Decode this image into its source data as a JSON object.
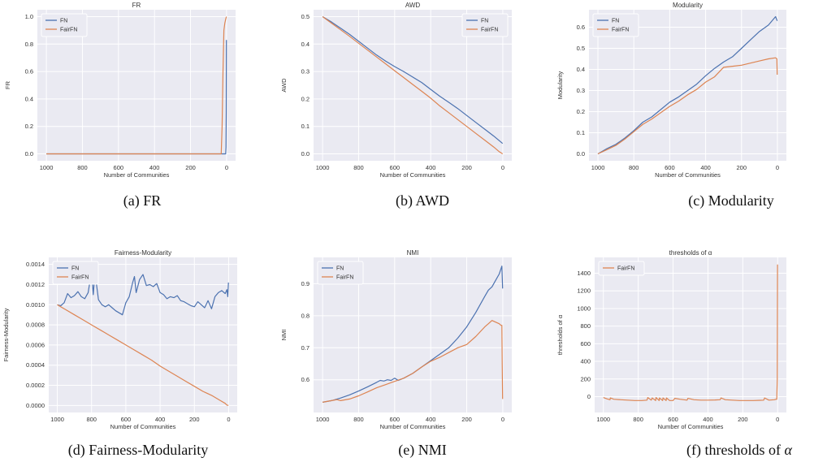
{
  "colors": {
    "fn": "#4c72b0",
    "fairfn": "#dd8452",
    "plot_bg": "#eaeaf2",
    "grid": "#ffffff",
    "text": "#333333"
  },
  "captions": {
    "a": "(a) FR",
    "b": "(b) AWD",
    "c": "(c) Modularity",
    "d": "(d) Fairness-Modularity",
    "e": "(e) NMI",
    "f_prefix": "(f) thresholds of ",
    "f_symbol": "α"
  },
  "chart_data": [
    {
      "id": "fr",
      "type": "line",
      "title": "FR",
      "xlabel": "Number of Communities",
      "ylabel": "FR",
      "xlim": [
        1000,
        0
      ],
      "ylim": [
        0,
        1.0
      ],
      "xticks": [
        1000,
        800,
        600,
        400,
        200,
        0
      ],
      "xticklabels": [
        "1000",
        "800",
        "600",
        "400",
        "200",
        "0"
      ],
      "yticks": [
        0,
        0.2,
        0.4,
        0.6,
        0.8,
        1.0
      ],
      "yticklabels": [
        "0.0",
        "0.2",
        "0.4",
        "0.6",
        "0.8",
        "1.0"
      ],
      "legend": "top-left",
      "series": [
        {
          "name": "FN",
          "color_key": "fn",
          "x": [
            1000,
            5,
            3,
            2,
            1
          ],
          "y": [
            0,
            0,
            0.05,
            0.3,
            0.83
          ]
        },
        {
          "name": "FairFN",
          "color_key": "fairfn",
          "x": [
            1000,
            30,
            25,
            20,
            15,
            10,
            5,
            1
          ],
          "y": [
            0,
            0,
            0.2,
            0.6,
            0.9,
            0.95,
            0.98,
            1.0
          ]
        }
      ]
    },
    {
      "id": "awd",
      "type": "line",
      "title": "AWD",
      "xlabel": "Number of Communities",
      "ylabel": "AWD",
      "xlim": [
        1000,
        0
      ],
      "ylim": [
        0,
        0.5
      ],
      "xticks": [
        1000,
        800,
        600,
        400,
        200,
        0
      ],
      "xticklabels": [
        "1000",
        "800",
        "600",
        "400",
        "200",
        "0"
      ],
      "yticks": [
        0,
        0.1,
        0.2,
        0.3,
        0.4,
        0.5
      ],
      "yticklabels": [
        "0.0",
        "0.1",
        "0.2",
        "0.3",
        "0.4",
        "0.5"
      ],
      "legend": "top-right",
      "series": [
        {
          "name": "FN",
          "color_key": "fn",
          "x": [
            1000,
            950,
            900,
            850,
            800,
            750,
            700,
            650,
            600,
            550,
            500,
            450,
            400,
            350,
            300,
            250,
            200,
            150,
            100,
            50,
            1
          ],
          "y": [
            0.5,
            0.48,
            0.458,
            0.435,
            0.41,
            0.385,
            0.36,
            0.338,
            0.318,
            0.3,
            0.28,
            0.26,
            0.235,
            0.21,
            0.188,
            0.165,
            0.14,
            0.115,
            0.09,
            0.065,
            0.038
          ]
        },
        {
          "name": "FairFN",
          "color_key": "fairfn",
          "x": [
            1000,
            950,
            900,
            850,
            800,
            750,
            700,
            650,
            600,
            550,
            500,
            450,
            400,
            350,
            300,
            250,
            200,
            150,
            100,
            50,
            20,
            1
          ],
          "y": [
            0.5,
            0.476,
            0.452,
            0.428,
            0.403,
            0.378,
            0.353,
            0.328,
            0.303,
            0.278,
            0.253,
            0.228,
            0.203,
            0.175,
            0.15,
            0.125,
            0.1,
            0.075,
            0.05,
            0.025,
            0.008,
            0.0
          ]
        }
      ]
    },
    {
      "id": "modularity",
      "type": "line",
      "title": "Modularity",
      "xlabel": "Number of Communities",
      "ylabel": "Modularity",
      "xlim": [
        1000,
        0
      ],
      "ylim": [
        0,
        0.65
      ],
      "xticks": [
        1000,
        800,
        600,
        400,
        200,
        0
      ],
      "xticklabels": [
        "1000",
        "800",
        "600",
        "400",
        "200",
        "0"
      ],
      "yticks": [
        0,
        0.1,
        0.2,
        0.3,
        0.4,
        0.5,
        0.6
      ],
      "yticklabels": [
        "0.0",
        "0.1",
        "0.2",
        "0.3",
        "0.4",
        "0.5",
        "0.6"
      ],
      "legend": "top-left",
      "series": [
        {
          "name": "FN",
          "color_key": "fn",
          "x": [
            1000,
            950,
            900,
            850,
            800,
            750,
            700,
            650,
            600,
            550,
            500,
            450,
            400,
            350,
            300,
            250,
            200,
            150,
            100,
            50,
            10,
            1
          ],
          "y": [
            0.0,
            0.025,
            0.045,
            0.075,
            0.11,
            0.15,
            0.175,
            0.21,
            0.245,
            0.27,
            0.3,
            0.33,
            0.37,
            0.405,
            0.435,
            0.46,
            0.5,
            0.54,
            0.58,
            0.61,
            0.65,
            0.63
          ]
        },
        {
          "name": "FairFN",
          "color_key": "fairfn",
          "x": [
            1000,
            950,
            900,
            850,
            800,
            750,
            700,
            650,
            600,
            550,
            500,
            450,
            400,
            350,
            300,
            250,
            200,
            150,
            100,
            50,
            10,
            3,
            1
          ],
          "y": [
            0.0,
            0.02,
            0.04,
            0.07,
            0.105,
            0.14,
            0.165,
            0.195,
            0.225,
            0.25,
            0.28,
            0.305,
            0.34,
            0.365,
            0.41,
            0.415,
            0.42,
            0.43,
            0.44,
            0.45,
            0.455,
            0.45,
            0.375
          ]
        }
      ]
    },
    {
      "id": "fairness_modularity",
      "type": "line",
      "title": "Fairness-Modularity",
      "xlabel": "Number of Communities",
      "ylabel": "Fairness-Modularity",
      "xlim": [
        1000,
        0
      ],
      "ylim": [
        0,
        0.0014
      ],
      "xticks": [
        1000,
        800,
        600,
        400,
        200,
        0
      ],
      "xticklabels": [
        "1000",
        "800",
        "600",
        "400",
        "200",
        "0"
      ],
      "yticks": [
        0,
        0.0002,
        0.0004,
        0.0006,
        0.0008,
        0.001,
        0.0012,
        0.0014
      ],
      "yticklabels": [
        "0.0000",
        "0.0002",
        "0.0004",
        "0.0006",
        "0.0008",
        "0.0010",
        "0.0012",
        "0.0014"
      ],
      "legend": "top-left",
      "series": [
        {
          "name": "FN",
          "color_key": "fn",
          "x": [
            1000,
            980,
            960,
            940,
            920,
            900,
            880,
            860,
            840,
            820,
            800,
            790,
            780,
            760,
            740,
            720,
            700,
            680,
            660,
            640,
            620,
            600,
            580,
            560,
            550,
            540,
            520,
            500,
            480,
            460,
            440,
            420,
            400,
            380,
            360,
            340,
            320,
            300,
            280,
            260,
            240,
            220,
            200,
            180,
            160,
            140,
            120,
            100,
            80,
            60,
            40,
            20,
            10,
            5,
            1
          ],
          "y": [
            0.001,
            0.00099,
            0.00102,
            0.00111,
            0.00107,
            0.00109,
            0.00113,
            0.00108,
            0.00106,
            0.00112,
            0.00133,
            0.0011,
            0.00132,
            0.00105,
            0.001,
            0.00098,
            0.001,
            0.00097,
            0.00094,
            0.00092,
            0.0009,
            0.00102,
            0.00108,
            0.00122,
            0.00128,
            0.00112,
            0.00125,
            0.0013,
            0.00119,
            0.0012,
            0.00118,
            0.00121,
            0.00112,
            0.0011,
            0.00106,
            0.00108,
            0.00107,
            0.00109,
            0.00104,
            0.00103,
            0.00101,
            0.00099,
            0.00098,
            0.00103,
            0.001,
            0.00097,
            0.00104,
            0.00096,
            0.00108,
            0.00112,
            0.00114,
            0.00111,
            0.00115,
            0.00108,
            0.00122
          ]
        },
        {
          "name": "FairFN",
          "color_key": "fairfn",
          "x": [
            1000,
            950,
            900,
            850,
            800,
            750,
            700,
            650,
            600,
            550,
            500,
            450,
            400,
            350,
            300,
            250,
            200,
            150,
            100,
            50,
            20,
            10,
            1
          ],
          "y": [
            0.001,
            0.00095,
            0.0009,
            0.00085,
            0.0008,
            0.00075,
            0.0007,
            0.00065,
            0.0006,
            0.00055,
            0.0005,
            0.00045,
            0.00039,
            0.00034,
            0.00029,
            0.00024,
            0.00019,
            0.00014,
            0.0001,
            5e-05,
            2e-05,
            3e-06,
            0.0
          ]
        }
      ]
    },
    {
      "id": "nmi",
      "type": "line",
      "title": "NMI",
      "xlabel": "Number of Communities",
      "ylabel": "NMI",
      "xlim": [
        1000,
        0
      ],
      "ylim": [
        0.52,
        0.96
      ],
      "xticks": [
        1000,
        800,
        600,
        400,
        200,
        0
      ],
      "xticklabels": [
        "1000",
        "800",
        "600",
        "400",
        "200",
        "0"
      ],
      "yticks": [
        0.6,
        0.7,
        0.8,
        0.9
      ],
      "yticklabels": [
        "0.6",
        "0.7",
        "0.8",
        "0.9"
      ],
      "legend": "top-left",
      "series": [
        {
          "name": "FN",
          "color_key": "fn",
          "x": [
            1000,
            950,
            900,
            850,
            800,
            750,
            700,
            680,
            660,
            640,
            620,
            600,
            580,
            550,
            500,
            450,
            400,
            350,
            300,
            250,
            200,
            150,
            100,
            80,
            60,
            40,
            20,
            5,
            1
          ],
          "y": [
            0.53,
            0.535,
            0.543,
            0.553,
            0.565,
            0.578,
            0.592,
            0.598,
            0.596,
            0.6,
            0.598,
            0.605,
            0.598,
            0.605,
            0.62,
            0.64,
            0.66,
            0.68,
            0.7,
            0.73,
            0.765,
            0.81,
            0.86,
            0.88,
            0.89,
            0.91,
            0.93,
            0.955,
            0.885
          ]
        },
        {
          "name": "FairFN",
          "color_key": "fairfn",
          "x": [
            1000,
            950,
            920,
            900,
            850,
            800,
            750,
            700,
            650,
            600,
            550,
            500,
            450,
            400,
            350,
            300,
            250,
            200,
            150,
            100,
            80,
            60,
            40,
            20,
            10,
            5,
            3,
            1
          ],
          "y": [
            0.53,
            0.535,
            0.538,
            0.535,
            0.54,
            0.55,
            0.562,
            0.575,
            0.585,
            0.595,
            0.605,
            0.62,
            0.64,
            0.658,
            0.67,
            0.685,
            0.7,
            0.71,
            0.735,
            0.765,
            0.775,
            0.785,
            0.78,
            0.775,
            0.77,
            0.77,
            0.65,
            0.54
          ]
        }
      ]
    },
    {
      "id": "thresholds",
      "type": "line",
      "title": "thresholds of α",
      "xlabel": "Number of Communities",
      "ylabel": "thresholds of α",
      "xlim": [
        1000,
        0
      ],
      "ylim": [
        -100,
        1500
      ],
      "xticks": [
        1000,
        800,
        600,
        400,
        200,
        0
      ],
      "xticklabels": [
        "1000",
        "800",
        "600",
        "400",
        "200",
        "0"
      ],
      "yticks": [
        0,
        200,
        400,
        600,
        800,
        1000,
        1200,
        1400
      ],
      "yticklabels": [
        "0",
        "200",
        "400",
        "600",
        "800",
        "1000",
        "1200",
        "1400"
      ],
      "legend": "top-left",
      "series": [
        {
          "name": "FairFN",
          "color_key": "fairfn",
          "x": [
            1000,
            980,
            962,
            960,
            940,
            900,
            860,
            820,
            780,
            750,
            745,
            725,
            720,
            700,
            698,
            680,
            678,
            660,
            658,
            640,
            638,
            620,
            600,
            590,
            560,
            520,
            515,
            480,
            440,
            400,
            360,
            330,
            325,
            300,
            260,
            220,
            180,
            140,
            100,
            80,
            75,
            50,
            20,
            8,
            5,
            2,
            1
          ],
          "y": [
            -10,
            -25,
            -35,
            -15,
            -30,
            -35,
            -40,
            -45,
            -45,
            -40,
            -10,
            -40,
            -15,
            -45,
            -10,
            -45,
            -15,
            -45,
            -15,
            -45,
            -15,
            -45,
            -45,
            -20,
            -30,
            -40,
            -20,
            -35,
            -40,
            -40,
            -38,
            -35,
            -15,
            -35,
            -40,
            -45,
            -45,
            -45,
            -42,
            -40,
            -15,
            -40,
            -35,
            -30,
            -30,
            200,
            1500
          ]
        }
      ]
    }
  ]
}
